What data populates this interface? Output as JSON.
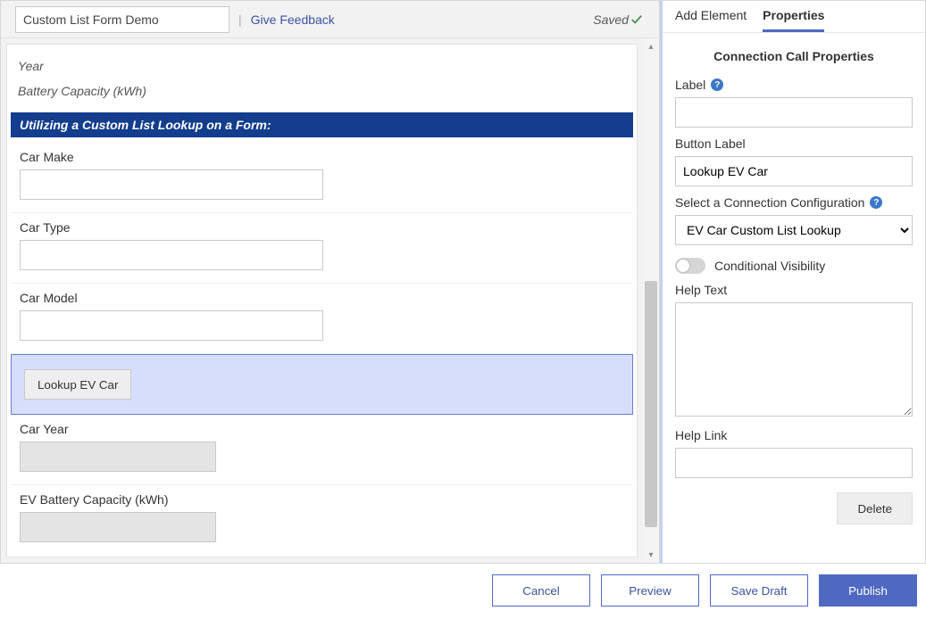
{
  "header": {
    "form_name": "Custom List Form Demo",
    "feedback_link": "Give Feedback",
    "saved_status": "Saved"
  },
  "canvas": {
    "static_fields": [
      {
        "label": "Year"
      },
      {
        "label": "Battery Capacity (kWh)"
      }
    ],
    "section_title": "Utilizing a Custom List Lookup on a Form:",
    "fields": [
      {
        "label": "Car Make",
        "value": "",
        "readonly": false
      },
      {
        "label": "Car Type",
        "value": "",
        "readonly": false
      },
      {
        "label": "Car Model",
        "value": "",
        "readonly": false
      }
    ],
    "lookup_button_label": "Lookup EV Car",
    "fields_after": [
      {
        "label": "Car Year",
        "value": "",
        "readonly": true
      },
      {
        "label": "EV Battery Capacity (kWh)",
        "value": "",
        "readonly": true
      }
    ]
  },
  "sidepanel": {
    "tabs": {
      "add_element": "Add Element",
      "properties": "Properties",
      "active": "properties"
    },
    "title": "Connection Call Properties",
    "label_field": {
      "label": "Label",
      "value": ""
    },
    "button_label_field": {
      "label": "Button Label",
      "value": "Lookup EV Car"
    },
    "connection_config": {
      "label": "Select a Connection Configuration",
      "selected": "EV Car Custom List Lookup",
      "options": [
        "EV Car Custom List Lookup"
      ]
    },
    "conditional_visibility": {
      "label": "Conditional Visibility",
      "on": false
    },
    "help_text": {
      "label": "Help Text",
      "value": ""
    },
    "help_link": {
      "label": "Help Link",
      "value": ""
    },
    "delete_label": "Delete"
  },
  "footer": {
    "cancel": "Cancel",
    "preview": "Preview",
    "save_draft": "Save Draft",
    "publish": "Publish"
  },
  "styling": {
    "section_bar_bg": "#133d8d",
    "selected_block_bg": "#d6defb",
    "selected_block_border": "#6a7ecb",
    "primary_color": "#4f69c3",
    "link_color": "#3b53a0",
    "scrollbar": {
      "thumb_top_pct": 46,
      "thumb_height_pct": 50
    }
  }
}
